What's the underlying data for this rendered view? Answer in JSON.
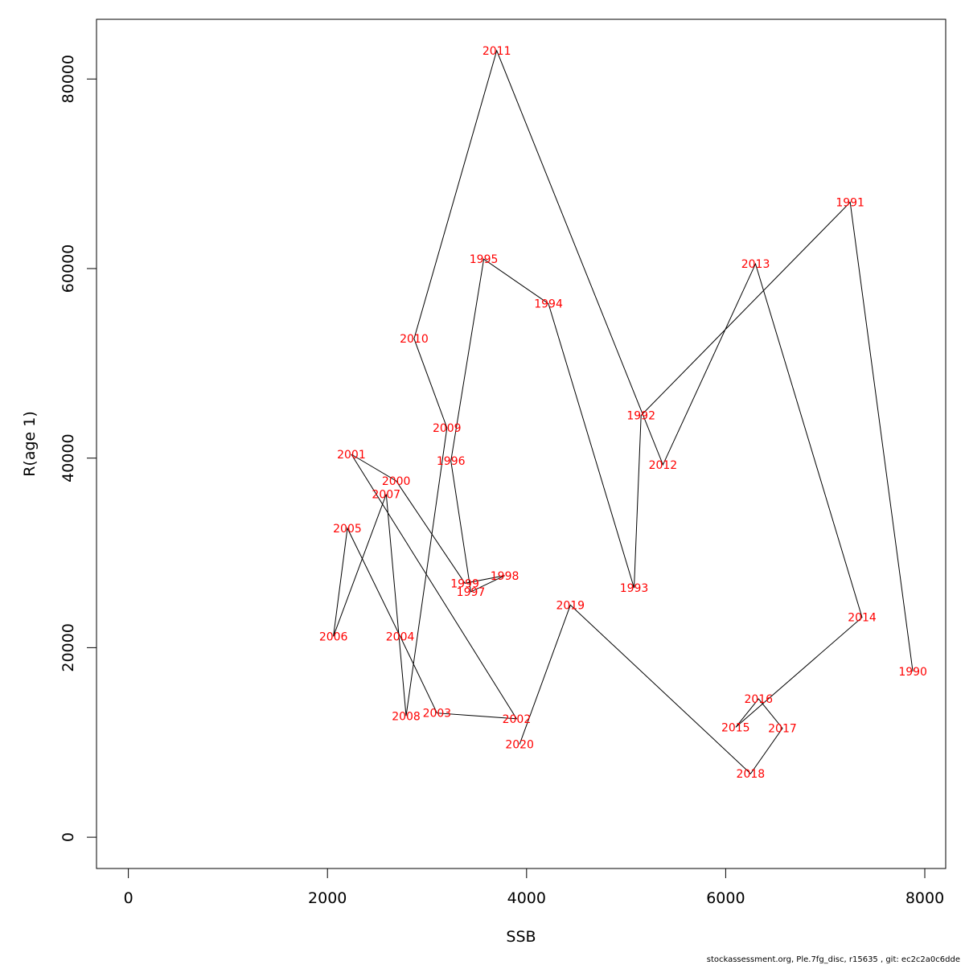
{
  "chart_data": {
    "type": "line",
    "title": "",
    "xlabel": "SSB",
    "ylabel": "R(age 1)",
    "xlim": [
      -320,
      8210
    ],
    "ylim": [
      -3300,
      86300
    ],
    "x_ticks": [
      0,
      2000,
      4000,
      6000,
      8000
    ],
    "x_tick_labels": [
      "0",
      "2000",
      "4000",
      "6000",
      "8000"
    ],
    "y_ticks": [
      0,
      20000,
      40000,
      60000,
      80000
    ],
    "y_tick_labels": [
      "0",
      "20000",
      "40000",
      "60000",
      "80000"
    ],
    "grid": false,
    "line_color": "#000000",
    "label_color": "#ff0000",
    "points": [
      {
        "label": "1990",
        "x": 7880,
        "y": 17500
      },
      {
        "label": "1991",
        "x": 7250,
        "y": 67000
      },
      {
        "label": "1992",
        "x": 5150,
        "y": 44500
      },
      {
        "label": "1993",
        "x": 5080,
        "y": 26300
      },
      {
        "label": "1994",
        "x": 4220,
        "y": 56300
      },
      {
        "label": "1995",
        "x": 3570,
        "y": 61000
      },
      {
        "label": "1996",
        "x": 3240,
        "y": 39700
      },
      {
        "label": "1997",
        "x": 3440,
        "y": 25900
      },
      {
        "label": "1998",
        "x": 3780,
        "y": 27600
      },
      {
        "label": "1999",
        "x": 3380,
        "y": 26800
      },
      {
        "label": "2000",
        "x": 2690,
        "y": 37600
      },
      {
        "label": "2001",
        "x": 2240,
        "y": 40400
      },
      {
        "label": "2002",
        "x": 3900,
        "y": 12500
      },
      {
        "label": "2003",
        "x": 3100,
        "y": 13100
      },
      {
        "label": "2004",
        "x": 2730,
        "y": 21200
      },
      {
        "label": "2005",
        "x": 2200,
        "y": 32600
      },
      {
        "label": "2006",
        "x": 2060,
        "y": 21200
      },
      {
        "label": "2007",
        "x": 2590,
        "y": 36200
      },
      {
        "label": "2008",
        "x": 2790,
        "y": 12800
      },
      {
        "label": "2009",
        "x": 3200,
        "y": 43200
      },
      {
        "label": "2010",
        "x": 2870,
        "y": 52600
      },
      {
        "label": "2011",
        "x": 3700,
        "y": 83000
      },
      {
        "label": "2012",
        "x": 5370,
        "y": 39300
      },
      {
        "label": "2013",
        "x": 6300,
        "y": 60500
      },
      {
        "label": "2014",
        "x": 7370,
        "y": 23200
      },
      {
        "label": "2015",
        "x": 6100,
        "y": 11600
      },
      {
        "label": "2016",
        "x": 6330,
        "y": 14600
      },
      {
        "label": "2017",
        "x": 6570,
        "y": 11500
      },
      {
        "label": "2018",
        "x": 6250,
        "y": 6700
      },
      {
        "label": "2019",
        "x": 4440,
        "y": 24500
      },
      {
        "label": "2020",
        "x": 3930,
        "y": 9800
      }
    ]
  },
  "footer_text": "stockassessment.org, Ple.7fg_disc, r15635 , git: ec2c2a0c6dde"
}
